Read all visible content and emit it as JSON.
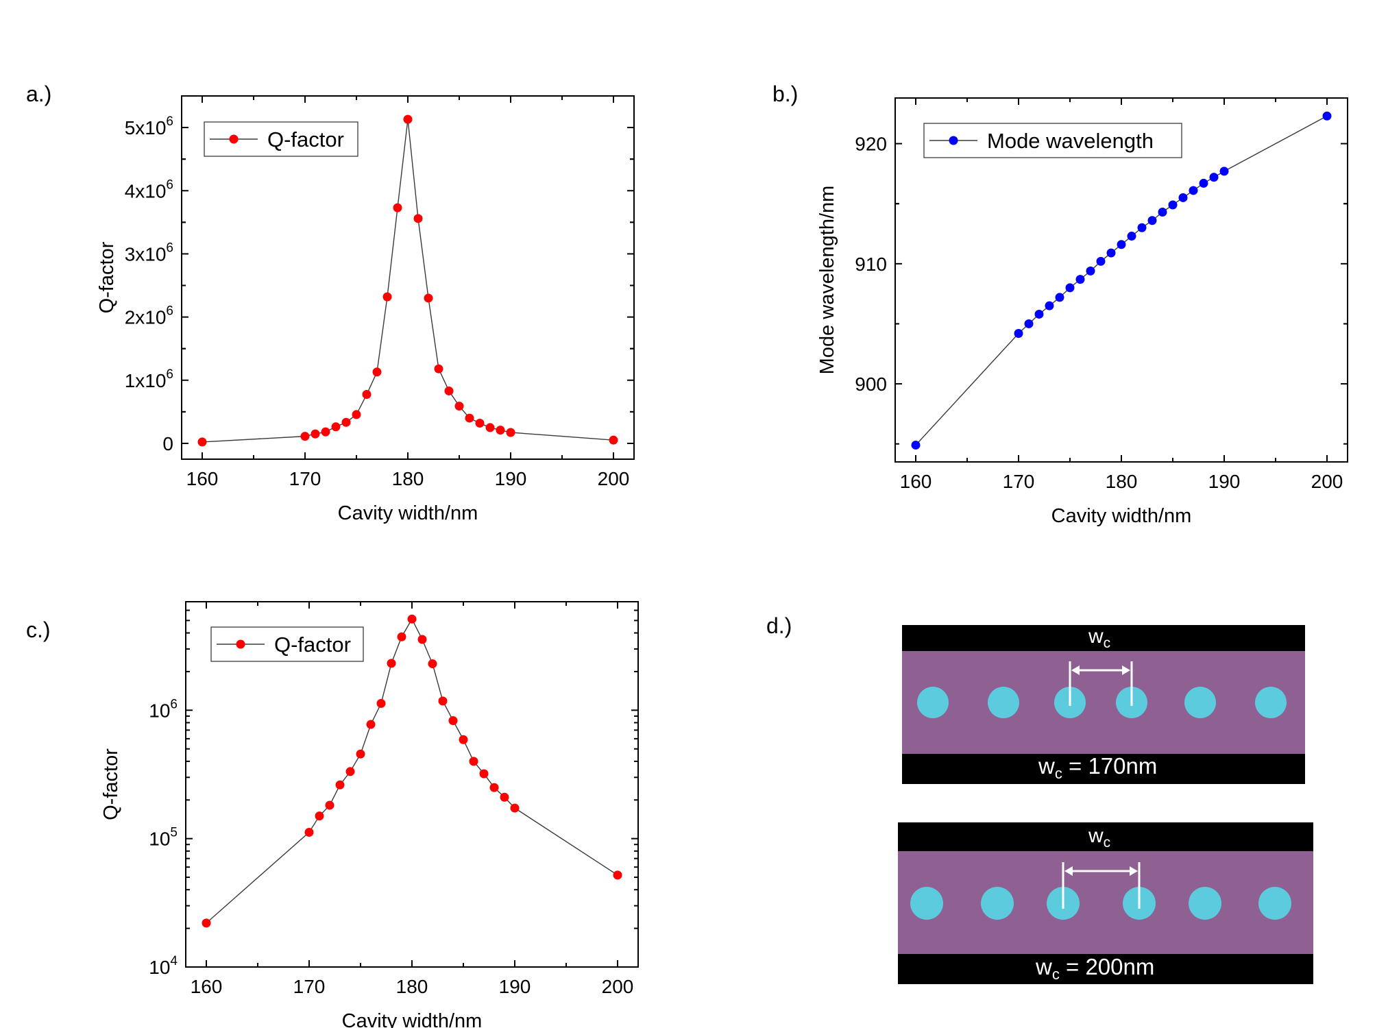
{
  "colors": {
    "q_marker": "#ff0000",
    "wl_marker": "#0000ff",
    "line": "#3a3a3a",
    "slab": "#8f6192",
    "hole": "#5ccbdd",
    "bar": "#000000",
    "annot": "#ffffff"
  },
  "chart_data": [
    {
      "id": "a",
      "panel_label": "a.)",
      "type": "line",
      "title": "",
      "xlabel": "Cavity width/nm",
      "ylabel": "Q-factor",
      "xlim": [
        158,
        202
      ],
      "ylim": [
        -250000,
        5500000
      ],
      "xticks": [
        160,
        170,
        180,
        190,
        200
      ],
      "xtick_labels": [
        "160",
        "170",
        "180",
        "190",
        "200"
      ],
      "yticks": [
        0,
        1000000,
        2000000,
        3000000,
        4000000,
        5000000
      ],
      "ytick_labels": [
        {
          "base": "0",
          "exp": ""
        },
        {
          "base": "1x10",
          "exp": "6"
        },
        {
          "base": "2x10",
          "exp": "6"
        },
        {
          "base": "3x10",
          "exp": "6"
        },
        {
          "base": "4x10",
          "exp": "6"
        },
        {
          "base": "5x10",
          "exp": "6"
        }
      ],
      "legend": {
        "label": "Q-factor",
        "position": "top-left"
      },
      "series": [
        {
          "name": "Q-factor",
          "x": [
            160,
            170,
            171,
            172,
            173,
            174,
            175,
            176,
            177,
            178,
            179,
            180,
            181,
            182,
            183,
            184,
            185,
            186,
            187,
            188,
            189,
            190,
            200
          ],
          "values": [
            22000,
            112000,
            150000,
            182000,
            262000,
            333000,
            456000,
            775000,
            1130000,
            2320000,
            3730000,
            5130000,
            3560000,
            2300000,
            1180000,
            830000,
            590000,
            400000,
            320000,
            250000,
            210000,
            173000,
            52000
          ]
        }
      ]
    },
    {
      "id": "b",
      "panel_label": "b.)",
      "type": "line",
      "title": "",
      "xlabel": "Cavity width/nm",
      "ylabel": "Mode wavelength/nm",
      "xlim": [
        158,
        202
      ],
      "ylim": [
        893.5,
        923.8
      ],
      "xticks": [
        160,
        170,
        180,
        190,
        200
      ],
      "xtick_labels": [
        "160",
        "170",
        "180",
        "190",
        "200"
      ],
      "yticks": [
        900,
        910,
        920
      ],
      "ytick_labels": [
        {
          "base": "900",
          "exp": ""
        },
        {
          "base": "910",
          "exp": ""
        },
        {
          "base": "920",
          "exp": ""
        }
      ],
      "legend": {
        "label": "Mode wavelength",
        "position": "top-left"
      },
      "series": [
        {
          "name": "Mode wavelength",
          "x": [
            160,
            170,
            171,
            172,
            173,
            174,
            175,
            176,
            177,
            178,
            179,
            180,
            181,
            182,
            183,
            184,
            185,
            186,
            187,
            188,
            189,
            190,
            200
          ],
          "values": [
            894.9,
            904.2,
            905.0,
            905.8,
            906.5,
            907.2,
            908.0,
            908.7,
            909.4,
            910.2,
            910.9,
            911.6,
            912.3,
            913.0,
            913.6,
            914.3,
            914.9,
            915.5,
            916.1,
            916.7,
            917.2,
            917.7,
            922.3
          ]
        }
      ]
    },
    {
      "id": "c",
      "panel_label": "c.)",
      "type": "line",
      "scale": "log",
      "title": "",
      "xlabel": "Cavity width/nm",
      "ylabel": "Q-factor",
      "xlim": [
        158,
        202
      ],
      "ylim": [
        10000,
        7000000
      ],
      "xticks": [
        160,
        170,
        180,
        190,
        200
      ],
      "xtick_labels": [
        "160",
        "170",
        "180",
        "190",
        "200"
      ],
      "yticks": [
        10000,
        100000,
        1000000
      ],
      "ytick_labels": [
        {
          "base": "10",
          "exp": "4"
        },
        {
          "base": "10",
          "exp": "5"
        },
        {
          "base": "10",
          "exp": "6"
        }
      ],
      "legend": {
        "label": "Q-factor",
        "position": "top-left"
      },
      "series": [
        {
          "name": "Q-factor",
          "x": [
            160,
            170,
            171,
            172,
            173,
            174,
            175,
            176,
            177,
            178,
            179,
            180,
            181,
            182,
            183,
            184,
            185,
            186,
            187,
            188,
            189,
            190,
            200
          ],
          "values": [
            22000,
            112000,
            150000,
            182000,
            262000,
            333000,
            456000,
            775000,
            1130000,
            2320000,
            3730000,
            5130000,
            3560000,
            2300000,
            1180000,
            830000,
            590000,
            400000,
            320000,
            250000,
            210000,
            173000,
            52000
          ]
        }
      ]
    }
  ],
  "panel_d": {
    "panel_label": "d.)",
    "top": {
      "symbol": "w",
      "sub": "c",
      "caption": " = 170nm"
    },
    "bottom": {
      "symbol": "w",
      "sub": "c",
      "caption": " = 200nm"
    }
  }
}
